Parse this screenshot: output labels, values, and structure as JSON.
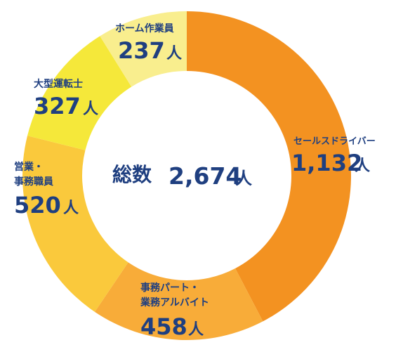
{
  "chart_data": {
    "type": "pie",
    "center_label": "総数",
    "total_value": "2,674",
    "unit": "人",
    "slices": [
      {
        "name": "セールスドライバー",
        "value": 1132,
        "value_label": "1,132",
        "color": "#f39221"
      },
      {
        "name": "事務パート・業務アルバイト",
        "value": 458,
        "value_label": "458",
        "color": "#f8ac39"
      },
      {
        "name": "営業・事務職員",
        "value": 520,
        "value_label": "520",
        "color": "#fac93c"
      },
      {
        "name": "大型運転士",
        "value": 327,
        "value_label": "327",
        "color": "#f5e83a"
      },
      {
        "name": "ホーム作業員",
        "value": 237,
        "value_label": "237",
        "color": "#f9ee8e"
      }
    ]
  }
}
